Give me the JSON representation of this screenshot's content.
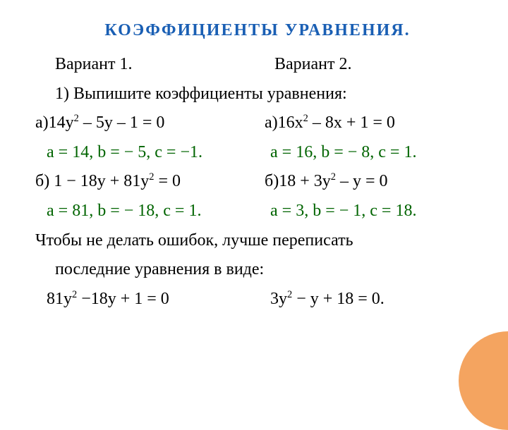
{
  "title": "КОЭФФИЦИЕНТЫ  УРАВНЕНИЯ.",
  "variant1": "Вариант  1.",
  "variant2": "Вариант 2.",
  "task": "1) Выпишите  коэффициенты  уравнения:",
  "left": {
    "eq_a_pre": "а)14у",
    "eq_a_post": " – 5у – 1 = 0",
    "ans_a": "а = 14,  b = − 5, c = −1.",
    "eq_b_pre": "б) 1 − 18у + 81у",
    "eq_b_post": " = 0",
    "ans_b": "а = 81, b = − 18, c = 1."
  },
  "right": {
    "eq_a_pre": "а)16х",
    "eq_a_post": " – 8х + 1 = 0",
    "ans_a": "а = 16, b = − 8, c = 1.",
    "eq_b_pre": "б)18 + 3у",
    "eq_b_post": " – у = 0",
    "ans_b": "а = 3, b = − 1, c = 18."
  },
  "advice1": "Чтобы  не  делать ошибок,  лучше  переписать",
  "advice2": "последние  уравнения  в  виде:",
  "rewrite_left_pre": "81у",
  "rewrite_left_post": " −18у + 1 = 0",
  "rewrite_right_pre": "3у",
  "rewrite_right_post": " − у + 18 = 0.",
  "squared": "2",
  "colors": {
    "title": "#1a5fb4",
    "text": "#000000",
    "answer": "#006400",
    "circle": "#f4a460",
    "background": "#ffffff"
  },
  "fontsize": {
    "title": 24,
    "body": 24
  }
}
